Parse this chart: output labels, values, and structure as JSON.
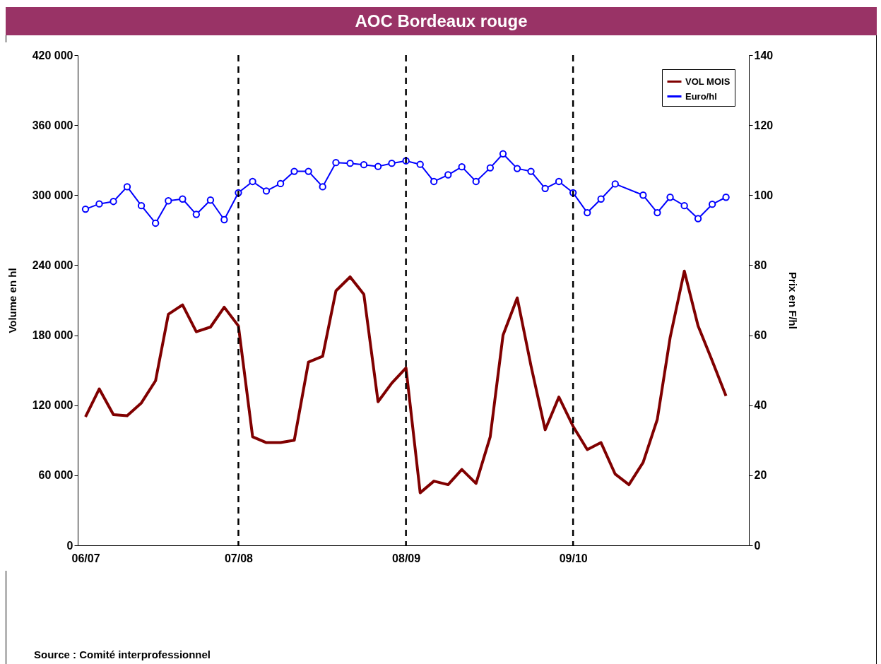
{
  "chart_data": {
    "type": "line",
    "title": "AOC Bordeaux rouge",
    "ylabel": "Volume en hl",
    "y2label": "Prix en F/hl",
    "annotations": [
      "Source : Comité interprofessionnel"
    ],
    "x": [
      "2006-09",
      "2006-10",
      "2006-11",
      "2006-12",
      "2007-01",
      "2007-02",
      "2007-03",
      "2007-04",
      "2007-05",
      "2007-06",
      "2007-07",
      "2007-08",
      "2007-09",
      "2007-10",
      "2007-11",
      "2007-12",
      "2008-01",
      "2008-02",
      "2008-03",
      "2008-04",
      "2008-05",
      "2008-06",
      "2008-07",
      "2008-08",
      "2008-09",
      "2008-10",
      "2008-11",
      "2008-12",
      "2009-01",
      "2009-02",
      "2009-03",
      "2009-04",
      "2009-05",
      "2009-06",
      "2009-07",
      "2009-08",
      "2009-09",
      "2009-10",
      "2009-11",
      "2009-12",
      "2010-01",
      "2010-02",
      "2010-03",
      "2010-04",
      "2010-05",
      "2010-06",
      "2010-07"
    ],
    "series": [
      {
        "name": "VOL MOIS",
        "color": "#800000",
        "marker": "none",
        "values": [
          110000,
          134000,
          112000,
          111000,
          122000,
          141000,
          198000,
          206000,
          183000,
          187000,
          204000,
          188000,
          93000,
          88000,
          88000,
          90000,
          157000,
          162000,
          218000,
          230000,
          215000,
          123000,
          139000,
          152000,
          45000,
          55000,
          52000,
          65000,
          53000,
          93000,
          180000,
          212000,
          154000,
          99000,
          127000,
          102000,
          82000,
          88000,
          61000,
          52000,
          71000,
          108000,
          178000,
          235000,
          188000,
          158000,
          128000
        ]
      },
      {
        "name": "Euro/hl",
        "color": "#0000ff",
        "axis": "y2",
        "marker": "circle",
        "values": [
          96,
          97.5,
          98.2,
          102.4,
          97,
          92,
          98.4,
          98.9,
          94.5,
          98.6,
          93,
          100.7,
          103.9,
          101.2,
          103.3,
          106.8,
          106.8,
          102.4,
          109.3,
          109.1,
          108.7,
          108.2,
          109.1,
          109.8,
          108.8,
          103.9,
          105.8,
          108.1,
          103.9,
          107.8,
          111.8,
          107.6,
          106.8,
          101.9,
          103.9,
          100.7,
          95,
          98.9,
          103.2,
          null,
          100,
          95,
          99.4,
          97,
          93.3,
          97.4,
          99.4
        ]
      }
    ],
    "xlim": [
      "2006-08-15",
      "2010-08-20"
    ],
    "xticks": [
      {
        "value": "2006-09",
        "label": "06/07"
      },
      {
        "value": "2007-08",
        "label": "07/08"
      },
      {
        "value": "2008-08",
        "label": "08/09"
      },
      {
        "value": "2009-08",
        "label": "09/10"
      }
    ],
    "ylim": [
      0,
      420000
    ],
    "yticks": [
      {
        "value": 0,
        "label": "0"
      },
      {
        "value": 60000,
        "label": "60 000"
      },
      {
        "value": 120000,
        "label": "120 000"
      },
      {
        "value": 180000,
        "label": "180 000"
      },
      {
        "value": 240000,
        "label": "240 000"
      },
      {
        "value": 300000,
        "label": "300 000"
      },
      {
        "value": 360000,
        "label": "360 000"
      },
      {
        "value": 420000,
        "label": "420 000"
      }
    ],
    "y2lim": [
      0,
      140
    ],
    "y2ticks": [
      0,
      20,
      40,
      60,
      80,
      100,
      120,
      140
    ],
    "ref_lines": [
      {
        "axis": "x",
        "value": "2007-08",
        "color": "#000000",
        "line_style": "dashed"
      },
      {
        "axis": "x",
        "value": "2008-08",
        "color": "#000000",
        "line_style": "dashed"
      },
      {
        "axis": "x",
        "value": "2009-08",
        "color": "#000000",
        "line_style": "dashed"
      }
    ],
    "grid": false,
    "legend": "top right"
  }
}
